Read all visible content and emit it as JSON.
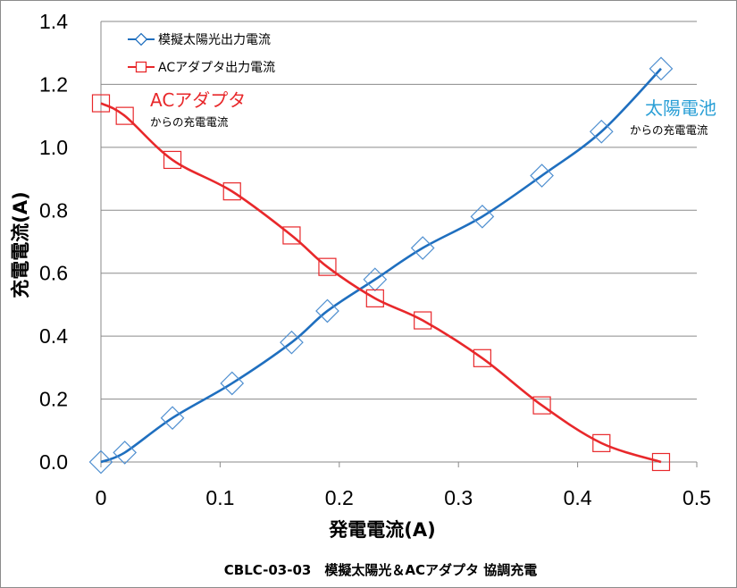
{
  "chart_data": {
    "type": "scatter",
    "x_label": "発電電流(A)",
    "y_label": "充電電流(A)",
    "xlim": [
      0,
      0.5
    ],
    "ylim": [
      0,
      1.4
    ],
    "x_ticks": [
      "0",
      "0.1",
      "0.2",
      "0.3",
      "0.4",
      "0.5"
    ],
    "y_ticks": [
      "0.0",
      "0.2",
      "0.4",
      "0.6",
      "0.8",
      "1.0",
      "1.2",
      "1.4"
    ],
    "grid": "horizontal",
    "legend_position": "top-left",
    "caption": "CBLC-03-03　模擬太陽光＆ACアダプタ 協調充電",
    "series": [
      {
        "name": "模擬太陽光出力電流",
        "color": "#1f6fbf",
        "marker": "diamond",
        "x": [
          0,
          0.02,
          0.06,
          0.11,
          0.16,
          0.19,
          0.23,
          0.27,
          0.32,
          0.37,
          0.42,
          0.47
        ],
        "y": [
          0.0,
          0.03,
          0.14,
          0.25,
          0.38,
          0.48,
          0.58,
          0.68,
          0.78,
          0.91,
          1.05,
          1.25
        ]
      },
      {
        "name": "ACアダプタ出力電流",
        "color": "#e8282b",
        "marker": "square",
        "x": [
          0,
          0.02,
          0.06,
          0.11,
          0.16,
          0.19,
          0.23,
          0.27,
          0.32,
          0.37,
          0.42,
          0.47
        ],
        "y": [
          1.14,
          1.1,
          0.96,
          0.86,
          0.72,
          0.62,
          0.52,
          0.45,
          0.33,
          0.18,
          0.06,
          0.0
        ]
      }
    ],
    "annotations": [
      {
        "title": "ACアダプタ",
        "subtitle": "からの充電電流",
        "color": "#e8282b"
      },
      {
        "title": "太陽電池",
        "subtitle": "からの充電電流",
        "color": "#2a9fd6"
      }
    ]
  }
}
